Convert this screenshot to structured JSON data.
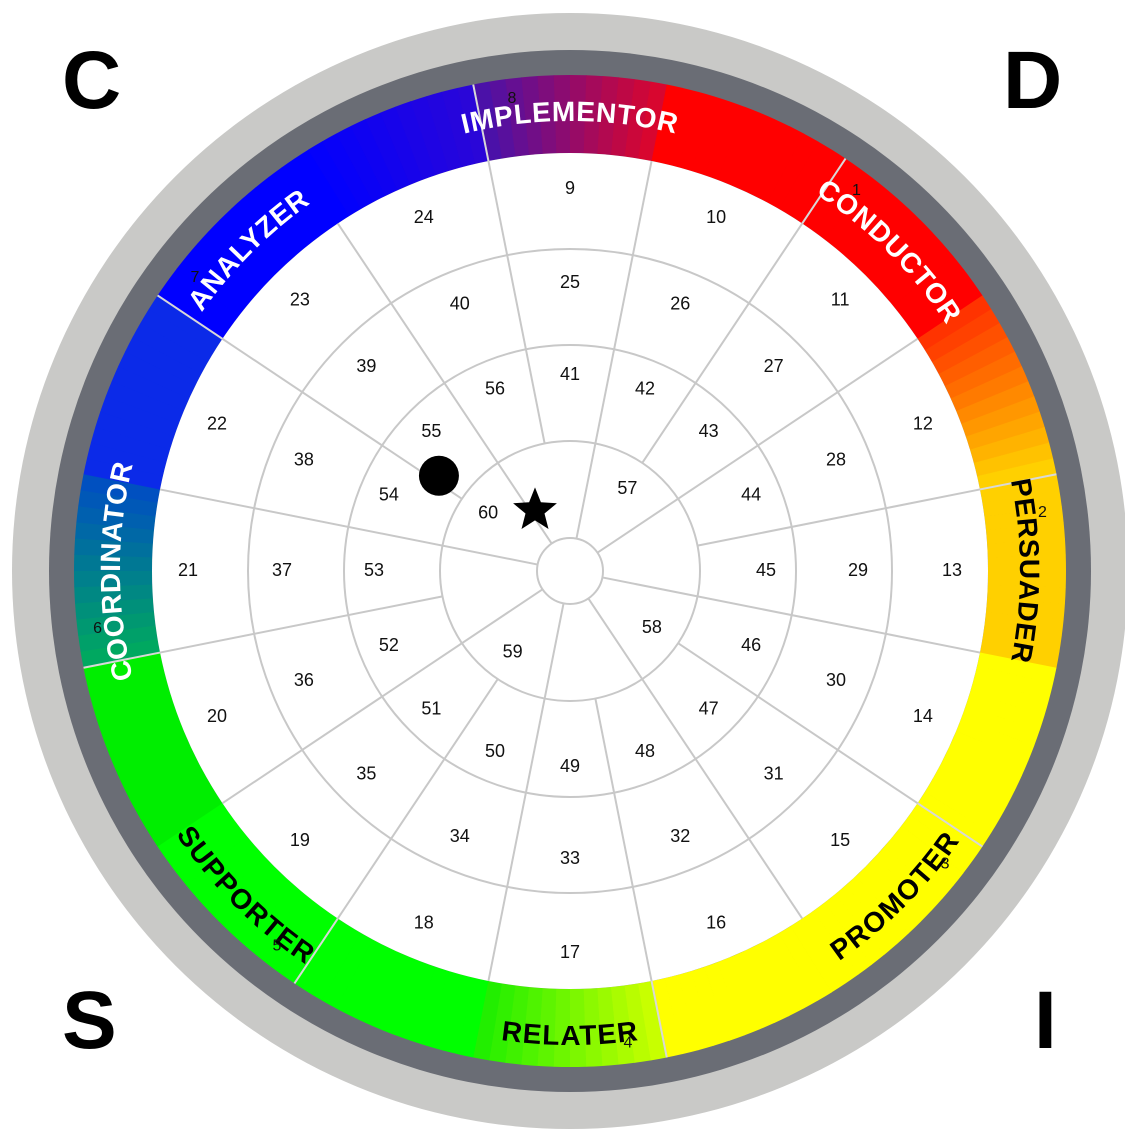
{
  "corners": {
    "top_left": "C",
    "top_right": "D",
    "bottom_left": "S",
    "bottom_right": "I"
  },
  "segments": [
    {
      "name": "IMPLEMENTOR",
      "number": "8",
      "from": "#4b11a8",
      "to": "#d8062f",
      "label_color": "#ffffff",
      "cells": [
        "9",
        "25",
        "41"
      ]
    },
    {
      "name": "CONDUCTOR",
      "number": "1",
      "from": "#ff0000",
      "to": "#ff0000",
      "label_color": "#ffffff",
      "cells": [
        "10",
        "26",
        "42"
      ]
    },
    {
      "name": "",
      "number": "",
      "from": "#ff0000",
      "to": "#ff0000",
      "label_color": "#ffffff",
      "cells": [
        "11",
        "27",
        "43"
      ]
    },
    {
      "name": "PERSUADER",
      "number": "2",
      "from": "#ff3300",
      "to": "#ffd000",
      "label_color": "#000000",
      "cells": [
        "12",
        "28",
        "44"
      ]
    },
    {
      "name": "",
      "number": "",
      "from": "#ffd000",
      "to": "#ffd000",
      "label_color": "#000000",
      "cells": [
        "13",
        "29",
        "45"
      ]
    },
    {
      "name": "",
      "number": "3",
      "from": "#ffff00",
      "to": "#ffff00",
      "label_color": "#000000",
      "cells": [
        "14",
        "30",
        "46"
      ]
    },
    {
      "name": "PROMOTER",
      "number": "",
      "from": "#ffff00",
      "to": "#ffff00",
      "label_color": "#000000",
      "cells": [
        "15",
        "31",
        "47"
      ]
    },
    {
      "name": "",
      "number": "4",
      "from": "#ffff00",
      "to": "#ffff00",
      "label_color": "#000000",
      "cells": [
        "16",
        "32",
        "48"
      ]
    },
    {
      "name": "RELATER",
      "number": "",
      "from": "#c8ff00",
      "to": "#22ee00",
      "label_color": "#000000",
      "cells": [
        "17",
        "33",
        "49"
      ]
    },
    {
      "name": "",
      "number": "5",
      "from": "#00ff00",
      "to": "#00ff00",
      "label_color": "#000000",
      "cells": [
        "18",
        "34",
        "50"
      ]
    },
    {
      "name": "SUPPORTER",
      "number": "",
      "from": "#00ff00",
      "to": "#00ff00",
      "label_color": "#000000",
      "cells": [
        "19",
        "35",
        "51"
      ]
    },
    {
      "name": "",
      "number": "6",
      "from": "#00ee00",
      "to": "#00ee00",
      "label_color": "#ffffff",
      "cells": [
        "20",
        "36",
        "52"
      ]
    },
    {
      "name": "COORDINATOR",
      "number": "",
      "from": "#00a860",
      "to": "#0050c0",
      "label_color": "#ffffff",
      "cells": [
        "21",
        "37",
        "53"
      ]
    },
    {
      "name": "",
      "number": "7",
      "from": "#0b2ae8",
      "to": "#0b2ae8",
      "label_color": "#ffffff",
      "cells": [
        "22",
        "38",
        "54"
      ]
    },
    {
      "name": "ANALYZER",
      "number": "",
      "from": "#0000ff",
      "to": "#0000ff",
      "label_color": "#ffffff",
      "cells": [
        "23",
        "39",
        "55"
      ]
    },
    {
      "name": "",
      "number": "",
      "from": "#0000ff",
      "to": "#2a06d8",
      "label_color": "#ffffff",
      "cells": [
        "24",
        "40",
        "56"
      ]
    }
  ],
  "inner_ring": [
    "57",
    "58",
    "59",
    "60"
  ],
  "markers": {
    "dot": {
      "symbol": "circle",
      "color": "#000000"
    },
    "star": {
      "symbol": "star",
      "color": "#000000"
    }
  },
  "colors": {
    "outer_rim": "#c9c9c7",
    "dark_ring": "#6a6d75",
    "grid": "#c8c8c8"
  }
}
